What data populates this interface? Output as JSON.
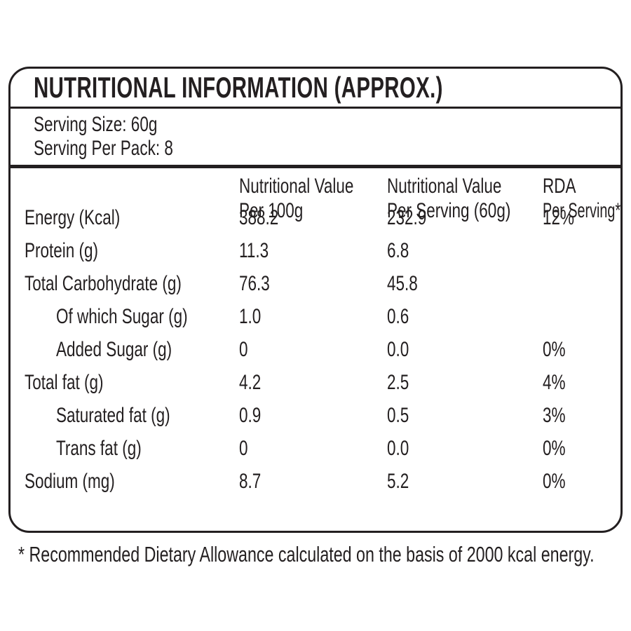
{
  "panel": {
    "title": "NUTRITIONAL INFORMATION (APPROX.)",
    "serving_size": "Serving Size: 60g",
    "serving_per_pack": "Serving Per Pack: 8"
  },
  "table": {
    "columns": [
      {
        "line1": "Nutritional Value",
        "line2": "Per 100g"
      },
      {
        "line1": "Nutritional Value",
        "line2": "Per Serving (60g)"
      },
      {
        "line1": "RDA",
        "line2": "Per Serving*"
      }
    ],
    "rows": [
      {
        "label": "Energy (Kcal)",
        "per100g": "388.2",
        "perServing": "232.9",
        "rda": "12%"
      },
      {
        "label": "Protein (g)",
        "per100g": "11.3",
        "perServing": "6.8",
        "rda": ""
      },
      {
        "label": "Total Carbohydrate (g)",
        "per100g": "76.3",
        "perServing": "45.8",
        "rda": ""
      },
      {
        "label": "Of which Sugar (g)",
        "per100g": "1.0",
        "perServing": "0.6",
        "rda": ""
      },
      {
        "label": "Added Sugar (g)",
        "per100g": "0",
        "perServing": "0.0",
        "rda": "0%"
      },
      {
        "label": "Total fat (g)",
        "per100g": "4.2",
        "perServing": "2.5",
        "rda": "4%"
      },
      {
        "label": "Saturated fat (g)",
        "per100g": "0.9",
        "perServing": "0.5",
        "rda": "3%"
      },
      {
        "label": "Trans fat (g)",
        "per100g": "0",
        "perServing": "0.0",
        "rda": "0%"
      },
      {
        "label": "Sodium (mg)",
        "per100g": "8.7",
        "perServing": "5.2",
        "rda": "0%"
      }
    ]
  },
  "footnote": "* Recommended Dietary Allowance calculated on the basis of 2000 kcal energy.",
  "colors": {
    "text": "#231f20",
    "border": "#231f20",
    "background": "#ffffff"
  }
}
